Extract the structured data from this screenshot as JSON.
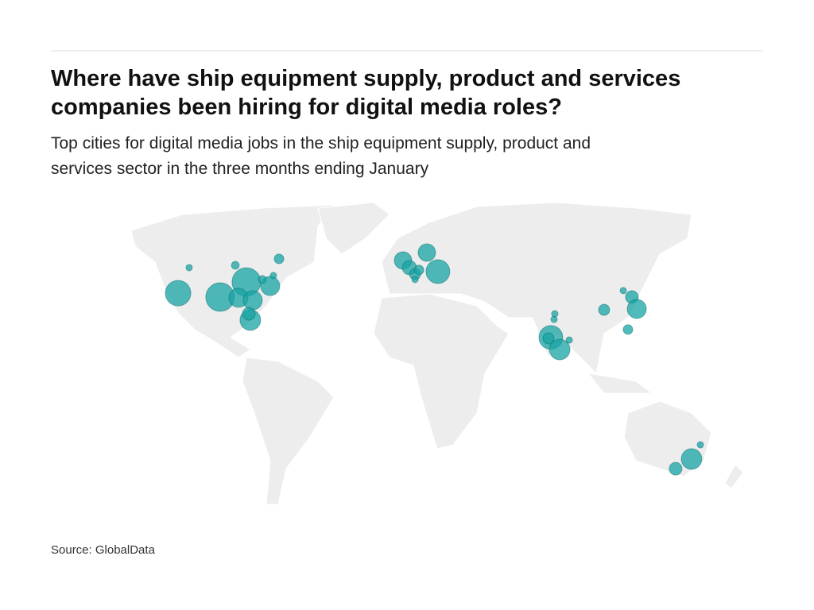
{
  "header": {
    "title_lines": [
      "Where have ship equipment supply, product and services",
      "companies been hiring for digital media roles?"
    ],
    "subtitle_lines": [
      "Top cities for digital media jobs in the ship equipment supply, product and",
      "services sector in the three months ending January"
    ]
  },
  "source": "Source: GlobalData",
  "bubble_color": "#17a3a3",
  "bubbles": [
    {
      "lon": -119.9,
      "lat": 37.3,
      "value": 64
    },
    {
      "lon": -114.0,
      "lat": 48.3,
      "value": 4
    },
    {
      "lon": -89.4,
      "lat": 49.3,
      "value": 6
    },
    {
      "lon": -66.1,
      "lat": 52.1,
      "value": 9
    },
    {
      "lon": -97.5,
      "lat": 35.6,
      "value": 81
    },
    {
      "lon": -83.5,
      "lat": 42.1,
      "value": 81
    },
    {
      "lon": -87.7,
      "lat": 35.3,
      "value": 36
    },
    {
      "lon": -80.1,
      "lat": 34.2,
      "value": 36
    },
    {
      "lon": -70.8,
      "lat": 40.4,
      "value": 36
    },
    {
      "lon": -75.0,
      "lat": 43.2,
      "value": 6
    },
    {
      "lon": -69.1,
      "lat": 44.9,
      "value": 4
    },
    {
      "lon": -81.4,
      "lat": 25.7,
      "value": 42
    },
    {
      "lon": -82.2,
      "lat": 28.4,
      "value": 16
    },
    {
      "lon": 0,
      "lat": 51.4,
      "value": 30
    },
    {
      "lon": 3.4,
      "lat": 48.3,
      "value": 20
    },
    {
      "lon": 6.4,
      "lat": 45.5,
      "value": 12
    },
    {
      "lon": 8.5,
      "lat": 47.3,
      "value": 9
    },
    {
      "lon": 12.7,
      "lat": 54.8,
      "value": 30
    },
    {
      "lon": 18.6,
      "lat": 46.6,
      "value": 56
    },
    {
      "lon": 6.4,
      "lat": 43.2,
      "value": 4
    },
    {
      "lon": 78.8,
      "lat": 18.2,
      "value": 56
    },
    {
      "lon": 83.5,
      "lat": 13.0,
      "value": 42
    },
    {
      "lon": 77.5,
      "lat": 17.8,
      "value": 12
    },
    {
      "lon": 80.9,
      "lat": 28.4,
      "value": 4
    },
    {
      "lon": 80.5,
      "lat": 26.0,
      "value": 4
    },
    {
      "lon": 88.6,
      "lat": 17.1,
      "value": 4
    },
    {
      "lon": 107.2,
      "lat": 30.1,
      "value": 12
    },
    {
      "lon": 122.0,
      "lat": 35.6,
      "value": 16
    },
    {
      "lon": 124.6,
      "lat": 30.5,
      "value": 36
    },
    {
      "lon": 117.4,
      "lat": 38.4,
      "value": 4
    },
    {
      "lon": 119.9,
      "lat": 21.6,
      "value": 9
    },
    {
      "lon": 153.8,
      "lat": -34.2,
      "value": 42
    },
    {
      "lon": 145.3,
      "lat": -38.4,
      "value": 16
    },
    {
      "lon": 158.5,
      "lat": -28.1,
      "value": 4
    }
  ]
}
